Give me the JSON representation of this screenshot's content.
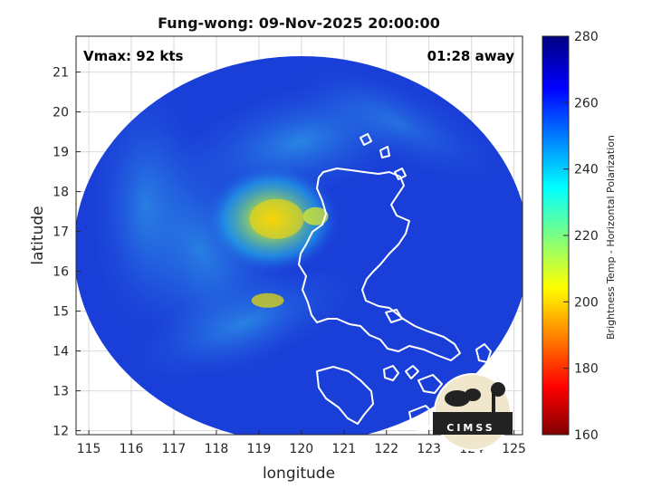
{
  "chart_data": {
    "type": "heatmap",
    "title": "Fung-wong: 09-Nov-2025 20:00:00",
    "xlabel": "longitude",
    "ylabel": "latitude",
    "xlim": [
      114.7,
      125.2
    ],
    "ylim": [
      11.9,
      21.9
    ],
    "x_ticks": [
      115,
      116,
      117,
      118,
      119,
      120,
      121,
      122,
      123,
      124,
      125
    ],
    "y_ticks": [
      12,
      13,
      14,
      15,
      16,
      17,
      18,
      19,
      20,
      21
    ],
    "grid": true,
    "annotations": {
      "top_left": "Vmax: 92 kts",
      "top_right": "01:28 away"
    },
    "swath": {
      "center_lon": 120.0,
      "center_lat": 16.55,
      "lon_radius": 5.35,
      "lat_radius": 4.85
    },
    "storm_center": {
      "lon": 119.1,
      "lat": 17.2
    },
    "colorbar": {
      "label": "Brightness Temp - Horizontal Polarization",
      "range": [
        160,
        280
      ],
      "ticks": [
        160,
        180,
        200,
        220,
        240,
        260,
        280
      ],
      "colormap": "jet"
    },
    "logo_text": "CIMSS",
    "colors": {
      "background_field": "#1a3fd8",
      "coastline": "#ffffff",
      "grid": "#d9d9d9",
      "axes": "#262626"
    }
  }
}
